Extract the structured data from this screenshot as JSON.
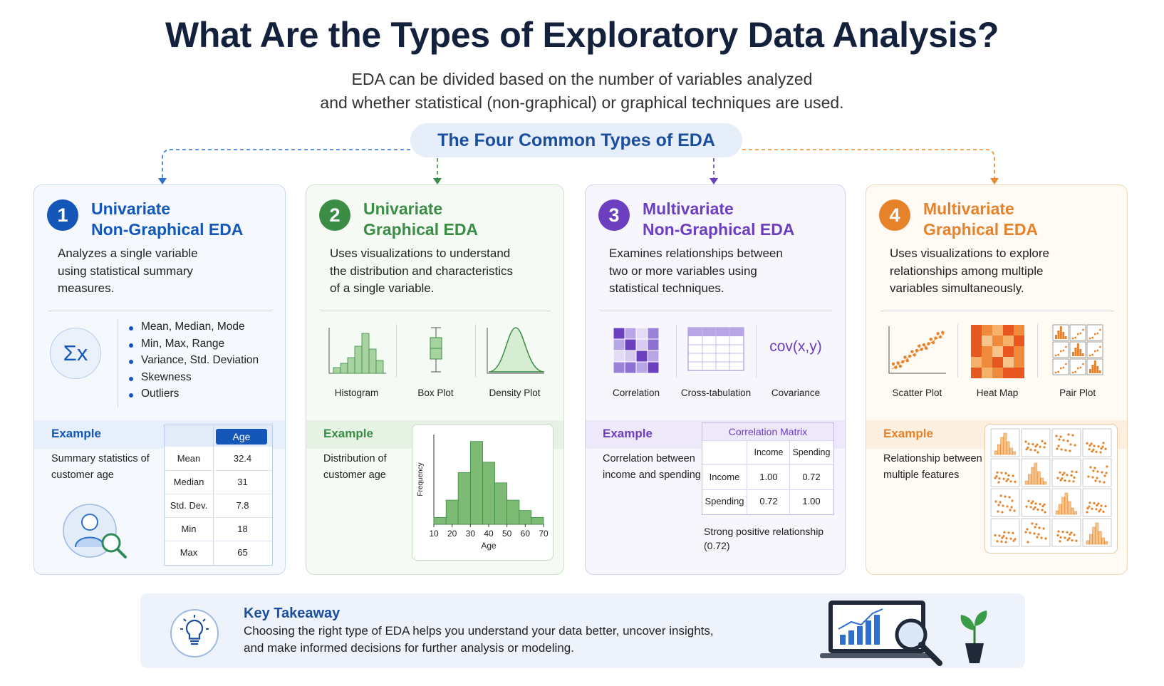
{
  "header": {
    "title": "What Are the Types of Exploratory Data Analysis?",
    "subtitle": [
      "EDA can be divided based on the number of variables analyzed",
      "and whether statistical (non-graphical) or graphical techniques are used."
    ]
  },
  "section_label": "The Four Common Types of EDA",
  "cards": [
    {
      "number": "1",
      "title": [
        "Univariate",
        "Non-Graphical EDA"
      ],
      "description": [
        "Analyzes a single variable",
        "using statistical summary",
        "measures."
      ],
      "symbol": "Σx",
      "bullets": [
        "Mean, Median, Mode",
        "Min, Max, Range",
        "Variance, Std. Deviation",
        "Skewness",
        "Outliers"
      ],
      "example": {
        "label": "Example",
        "text": [
          "Summary statistics of",
          "customer age"
        ],
        "table": {
          "header": "Age",
          "rows": [
            [
              "Mean",
              "32.4"
            ],
            [
              "Median",
              "31"
            ],
            [
              "Std. Dev.",
              "7.8"
            ],
            [
              "Min",
              "18"
            ],
            [
              "Max",
              "65"
            ]
          ]
        }
      }
    },
    {
      "number": "2",
      "title": [
        "Univariate",
        "Graphical EDA"
      ],
      "description": [
        "Uses visualizations to understand",
        "the distribution and characteristics",
        "of a single variable."
      ],
      "methods": [
        "Histogram",
        "Box Plot",
        "Density Plot"
      ],
      "example": {
        "label": "Example",
        "text": [
          "Distribution of",
          "customer age"
        ],
        "histogram": {
          "type": "histogram",
          "bins": [
            10,
            16.7,
            23.3,
            30,
            36.7,
            43.3,
            50,
            56.7,
            63.3,
            70
          ],
          "counts": [
            2,
            7,
            15,
            24,
            18,
            12,
            7,
            4,
            2
          ],
          "xlim": [
            10,
            70
          ],
          "ylim": [
            0,
            26
          ],
          "xticks": [
            10,
            20,
            30,
            40,
            50,
            60,
            70
          ],
          "xlabel": "Age",
          "ylabel": "Frequency"
        }
      }
    },
    {
      "number": "3",
      "title": [
        "Multivariate",
        "Non-Graphical EDA"
      ],
      "description": [
        "Examines relationships between",
        "two or more variables using",
        "statistical techniques."
      ],
      "methods": [
        "Correlation",
        "Cross-tabulation",
        "Covariance"
      ],
      "method_symbol": "cov(x,y)",
      "example": {
        "label": "Example",
        "text": [
          "Correlation between",
          "income and spending"
        ],
        "table": {
          "title": "Correlation Matrix",
          "columns": [
            "Income",
            "Spending"
          ],
          "rows": [
            [
              "Income",
              "1.00",
              "0.72"
            ],
            [
              "Spending",
              "0.72",
              "1.00"
            ]
          ]
        },
        "note": [
          "Strong positive relationship",
          "(0.72)"
        ]
      }
    },
    {
      "number": "4",
      "title": [
        "Multivariate",
        "Graphical EDA"
      ],
      "description": [
        "Uses visualizations to explore",
        "relationships among multiple",
        "variables simultaneously."
      ],
      "methods": [
        "Scatter Plot",
        "Heat Map",
        "Pair Plot"
      ],
      "example": {
        "label": "Example",
        "text": [
          "Relationship between",
          "multiple features"
        ]
      }
    }
  ],
  "takeaway": {
    "title": "Key Takeaway",
    "text": [
      "Choosing the right type of EDA helps you understand your data better, uncover insights,",
      "and make informed decisions for further analysis or modeling."
    ]
  }
}
